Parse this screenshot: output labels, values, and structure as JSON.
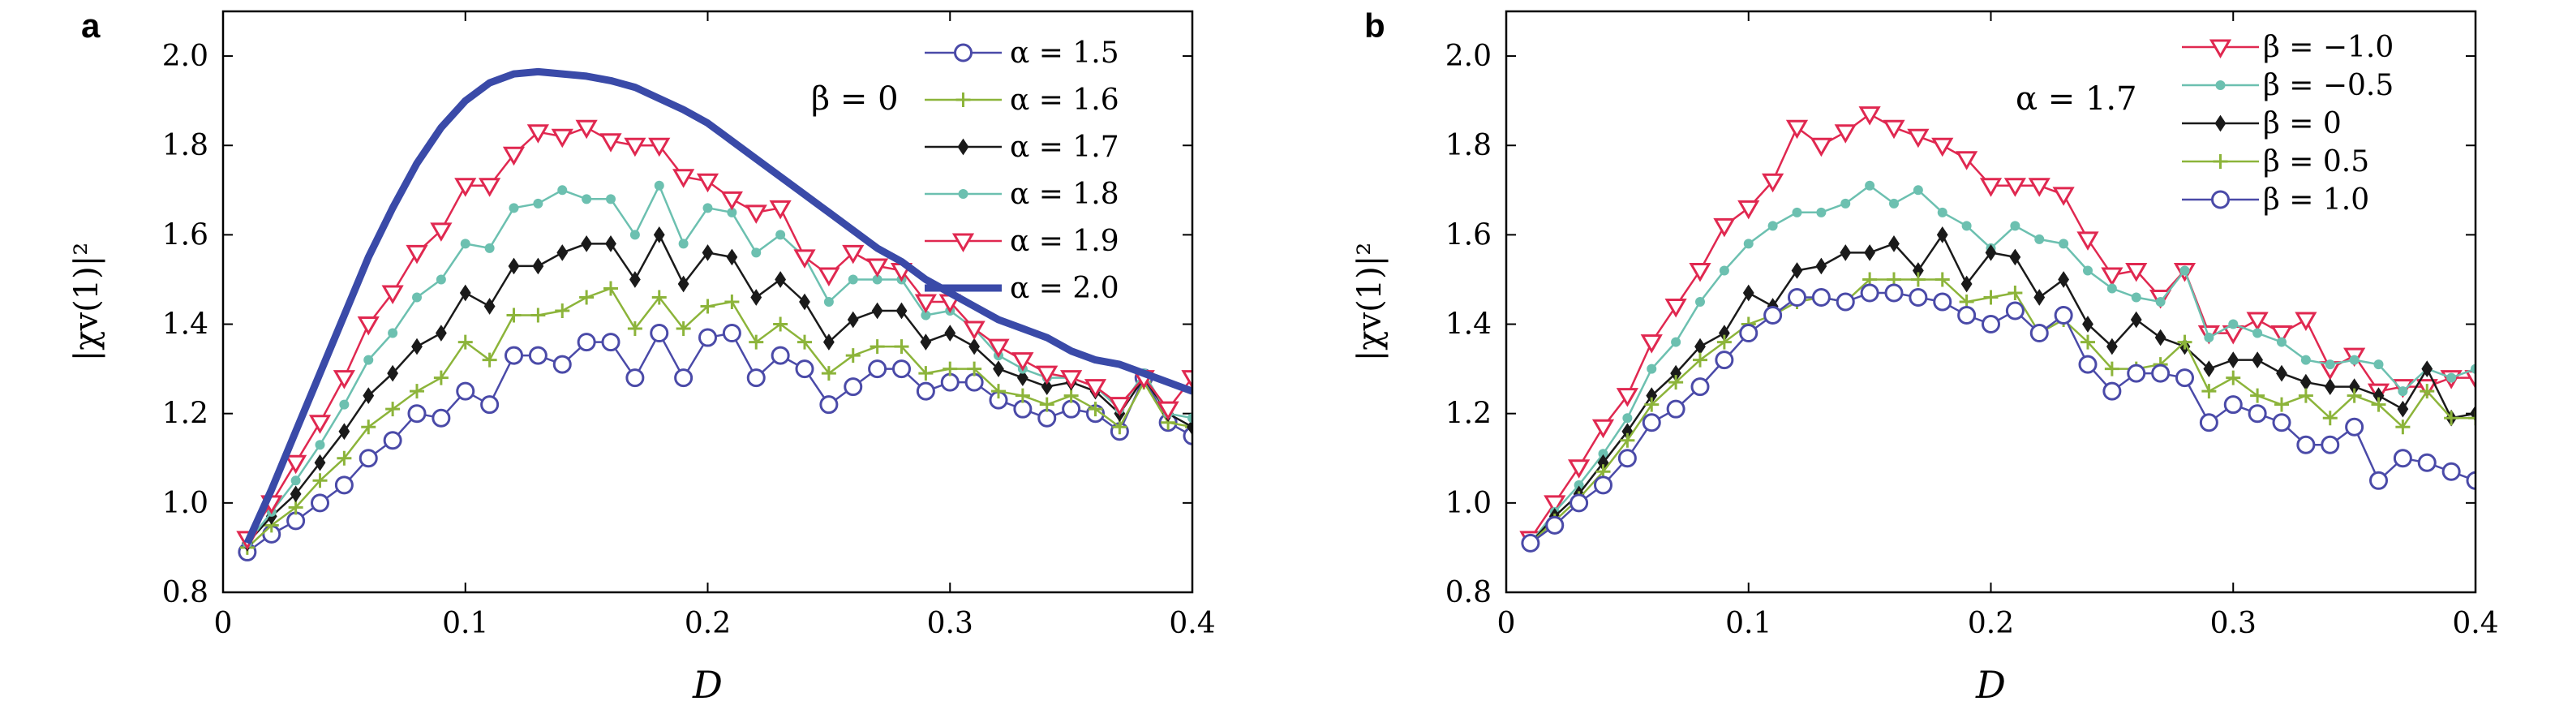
{
  "chart_data": [
    {
      "panel": "a",
      "type": "line",
      "xlabel": "D",
      "ylabel": "|χv(1)|²",
      "xlim": [
        0,
        0.4
      ],
      "ylim": [
        0.8,
        2.1
      ],
      "xticks": [
        "0",
        "0.1",
        "0.2",
        "0.3",
        "0.4"
      ],
      "yticks": [
        "0.8",
        "1.0",
        "1.2",
        "1.4",
        "1.6",
        "1.8",
        "2.0"
      ],
      "annotation": "β = 0",
      "legend": "top-right",
      "x": [
        0.01,
        0.02,
        0.03,
        0.04,
        0.05,
        0.06,
        0.07,
        0.08,
        0.09,
        0.1,
        0.11,
        0.12,
        0.13,
        0.14,
        0.15,
        0.16,
        0.17,
        0.18,
        0.19,
        0.2,
        0.21,
        0.22,
        0.23,
        0.24,
        0.25,
        0.26,
        0.27,
        0.28,
        0.29,
        0.3,
        0.31,
        0.32,
        0.33,
        0.34,
        0.35,
        0.36,
        0.37,
        0.38,
        0.39,
        0.4
      ],
      "series": [
        {
          "name": "α = 1.5",
          "color": "#4a4aa8",
          "marker": "circle",
          "values": [
            0.89,
            0.93,
            0.96,
            1.0,
            1.04,
            1.1,
            1.14,
            1.2,
            1.19,
            1.25,
            1.22,
            1.33,
            1.33,
            1.31,
            1.36,
            1.36,
            1.28,
            1.38,
            1.28,
            1.37,
            1.38,
            1.28,
            1.33,
            1.3,
            1.22,
            1.26,
            1.3,
            1.3,
            1.25,
            1.27,
            1.27,
            1.23,
            1.21,
            1.19,
            1.21,
            1.2,
            1.16,
            1.28,
            1.18,
            1.15
          ]
        },
        {
          "name": "α = 1.6",
          "color": "#8cb43a",
          "marker": "plus",
          "values": [
            0.9,
            0.95,
            0.99,
            1.05,
            1.1,
            1.17,
            1.21,
            1.25,
            1.28,
            1.36,
            1.32,
            1.42,
            1.42,
            1.43,
            1.46,
            1.48,
            1.39,
            1.46,
            1.39,
            1.44,
            1.45,
            1.36,
            1.4,
            1.36,
            1.29,
            1.33,
            1.35,
            1.35,
            1.29,
            1.3,
            1.3,
            1.25,
            1.24,
            1.22,
            1.24,
            1.21,
            1.17,
            1.27,
            1.18,
            1.17
          ]
        },
        {
          "name": "α = 1.7",
          "color": "#1a1a1a",
          "marker": "diamond",
          "values": [
            0.91,
            0.97,
            1.02,
            1.09,
            1.16,
            1.24,
            1.29,
            1.35,
            1.38,
            1.47,
            1.44,
            1.53,
            1.53,
            1.56,
            1.58,
            1.58,
            1.5,
            1.6,
            1.49,
            1.56,
            1.55,
            1.46,
            1.5,
            1.45,
            1.36,
            1.41,
            1.43,
            1.43,
            1.36,
            1.38,
            1.35,
            1.3,
            1.28,
            1.26,
            1.27,
            1.25,
            1.2,
            1.28,
            1.2,
            1.17
          ]
        },
        {
          "name": "α = 1.8",
          "color": "#6cc0b0",
          "marker": "dot",
          "values": [
            0.91,
            0.98,
            1.05,
            1.13,
            1.22,
            1.32,
            1.38,
            1.46,
            1.5,
            1.58,
            1.57,
            1.66,
            1.67,
            1.7,
            1.68,
            1.68,
            1.6,
            1.71,
            1.58,
            1.66,
            1.65,
            1.56,
            1.6,
            1.55,
            1.45,
            1.5,
            1.5,
            1.5,
            1.42,
            1.43,
            1.39,
            1.33,
            1.3,
            1.28,
            1.28,
            1.26,
            1.21,
            1.29,
            1.2,
            1.19
          ]
        },
        {
          "name": "α = 1.9",
          "color": "#e02850",
          "marker": "triangle",
          "values": [
            0.92,
            1.0,
            1.09,
            1.18,
            1.28,
            1.4,
            1.47,
            1.56,
            1.61,
            1.71,
            1.71,
            1.78,
            1.83,
            1.82,
            1.84,
            1.81,
            1.8,
            1.8,
            1.73,
            1.72,
            1.68,
            1.65,
            1.66,
            1.55,
            1.51,
            1.56,
            1.53,
            1.52,
            1.45,
            1.45,
            1.39,
            1.35,
            1.32,
            1.29,
            1.28,
            1.26,
            1.22,
            1.28,
            1.21,
            1.28
          ]
        },
        {
          "name": "α = 2.0",
          "color": "#3a4aa8",
          "marker": "none",
          "values": [
            0.91,
            1.03,
            1.16,
            1.29,
            1.42,
            1.55,
            1.66,
            1.76,
            1.84,
            1.9,
            1.94,
            1.96,
            1.965,
            1.96,
            1.955,
            1.945,
            1.93,
            1.905,
            1.88,
            1.85,
            1.81,
            1.77,
            1.73,
            1.69,
            1.65,
            1.61,
            1.57,
            1.54,
            1.5,
            1.47,
            1.44,
            1.41,
            1.39,
            1.37,
            1.34,
            1.32,
            1.31,
            1.29,
            1.27,
            1.25
          ]
        }
      ]
    },
    {
      "panel": "b",
      "type": "line",
      "xlabel": "D",
      "ylabel": "|χv(1)|²",
      "xlim": [
        0,
        0.4
      ],
      "ylim": [
        0.8,
        2.1
      ],
      "xticks": [
        "0",
        "0.1",
        "0.2",
        "0.3",
        "0.4"
      ],
      "yticks": [
        "0.8",
        "1.0",
        "1.2",
        "1.4",
        "1.6",
        "1.8",
        "2.0"
      ],
      "annotation": "α = 1.7",
      "legend": "top-right",
      "x": [
        0.01,
        0.02,
        0.03,
        0.04,
        0.05,
        0.06,
        0.07,
        0.08,
        0.09,
        0.1,
        0.11,
        0.12,
        0.13,
        0.14,
        0.15,
        0.16,
        0.17,
        0.18,
        0.19,
        0.2,
        0.21,
        0.22,
        0.23,
        0.24,
        0.25,
        0.26,
        0.27,
        0.28,
        0.29,
        0.3,
        0.31,
        0.32,
        0.33,
        0.34,
        0.35,
        0.36,
        0.37,
        0.38,
        0.39,
        0.4
      ],
      "series": [
        {
          "name": "β = −1.0",
          "color": "#e02850",
          "marker": "triangle",
          "values": [
            0.92,
            1.0,
            1.08,
            1.17,
            1.24,
            1.36,
            1.44,
            1.52,
            1.62,
            1.66,
            1.72,
            1.84,
            1.8,
            1.83,
            1.87,
            1.84,
            1.82,
            1.8,
            1.77,
            1.71,
            1.71,
            1.71,
            1.69,
            1.59,
            1.51,
            1.52,
            1.46,
            1.52,
            1.38,
            1.38,
            1.41,
            1.38,
            1.41,
            1.3,
            1.33,
            1.25,
            1.26,
            1.26,
            1.28,
            1.28
          ]
        },
        {
          "name": "β = −0.5",
          "color": "#6cc0b0",
          "marker": "dot",
          "values": [
            0.91,
            0.98,
            1.04,
            1.11,
            1.19,
            1.3,
            1.36,
            1.45,
            1.52,
            1.58,
            1.62,
            1.65,
            1.65,
            1.67,
            1.71,
            1.67,
            1.7,
            1.65,
            1.62,
            1.57,
            1.62,
            1.59,
            1.58,
            1.52,
            1.48,
            1.46,
            1.45,
            1.52,
            1.37,
            1.4,
            1.38,
            1.36,
            1.32,
            1.31,
            1.32,
            1.31,
            1.25,
            1.3,
            1.28,
            1.3
          ]
        },
        {
          "name": "β = 0",
          "color": "#1a1a1a",
          "marker": "diamond",
          "values": [
            0.91,
            0.97,
            1.02,
            1.09,
            1.16,
            1.24,
            1.29,
            1.35,
            1.38,
            1.47,
            1.44,
            1.52,
            1.53,
            1.56,
            1.56,
            1.58,
            1.52,
            1.6,
            1.49,
            1.56,
            1.55,
            1.46,
            1.5,
            1.4,
            1.35,
            1.41,
            1.37,
            1.35,
            1.3,
            1.32,
            1.32,
            1.29,
            1.27,
            1.26,
            1.26,
            1.24,
            1.21,
            1.3,
            1.19,
            1.2
          ]
        },
        {
          "name": "β = 0.5",
          "color": "#8cb43a",
          "marker": "plus",
          "values": [
            0.91,
            0.96,
            1.01,
            1.07,
            1.14,
            1.22,
            1.27,
            1.32,
            1.36,
            1.4,
            1.42,
            1.45,
            1.46,
            1.45,
            1.5,
            1.5,
            1.5,
            1.5,
            1.45,
            1.46,
            1.47,
            1.38,
            1.41,
            1.36,
            1.3,
            1.3,
            1.31,
            1.36,
            1.25,
            1.28,
            1.24,
            1.22,
            1.24,
            1.19,
            1.24,
            1.22,
            1.17,
            1.25,
            1.19,
            1.19
          ]
        },
        {
          "name": "β = 1.0",
          "color": "#4a4aa8",
          "marker": "circle",
          "values": [
            0.91,
            0.95,
            1.0,
            1.04,
            1.1,
            1.18,
            1.21,
            1.26,
            1.32,
            1.38,
            1.42,
            1.46,
            1.46,
            1.45,
            1.47,
            1.47,
            1.46,
            1.45,
            1.42,
            1.4,
            1.43,
            1.38,
            1.42,
            1.31,
            1.25,
            1.29,
            1.29,
            1.28,
            1.18,
            1.22,
            1.2,
            1.18,
            1.13,
            1.13,
            1.17,
            1.05,
            1.1,
            1.09,
            1.07,
            1.05
          ]
        }
      ]
    }
  ]
}
